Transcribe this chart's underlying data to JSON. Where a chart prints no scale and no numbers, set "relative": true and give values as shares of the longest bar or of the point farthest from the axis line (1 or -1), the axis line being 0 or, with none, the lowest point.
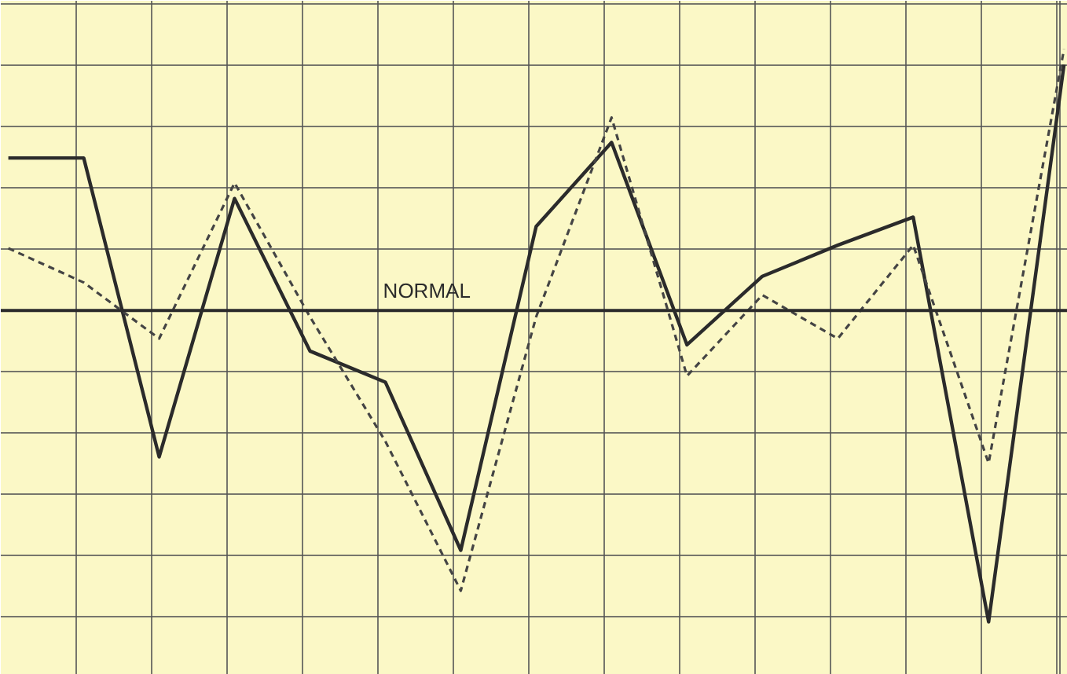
{
  "chart_data": {
    "type": "line",
    "relative": true,
    "grid": true,
    "categories": [
      null,
      null,
      null,
      null,
      null,
      null,
      null,
      null,
      null,
      null,
      null,
      null,
      null,
      null,
      null
    ],
    "series": [
      {
        "color": "#2b2b2b",
        "line_style": "solid",
        "values": [
          0.49,
          0.49,
          -0.47,
          0.36,
          -0.13,
          -0.23,
          -0.77,
          0.27,
          0.54,
          -0.11,
          0.11,
          0.21,
          0.3,
          -1,
          0.79
        ]
      },
      {
        "color": "#444444",
        "line_style": "dashed",
        "values": [
          0.2,
          0.09,
          -0.09,
          0.41,
          -0.02,
          -0.42,
          -0.9,
          -0.02,
          0.62,
          -0.21,
          0.05,
          -0.09,
          0.21,
          -0.49,
          0.84
        ]
      }
    ],
    "ref_lines": [
      {
        "axis": "y",
        "value": 0,
        "label": "NORMAL",
        "color": "#2b2b2b"
      }
    ]
  }
}
